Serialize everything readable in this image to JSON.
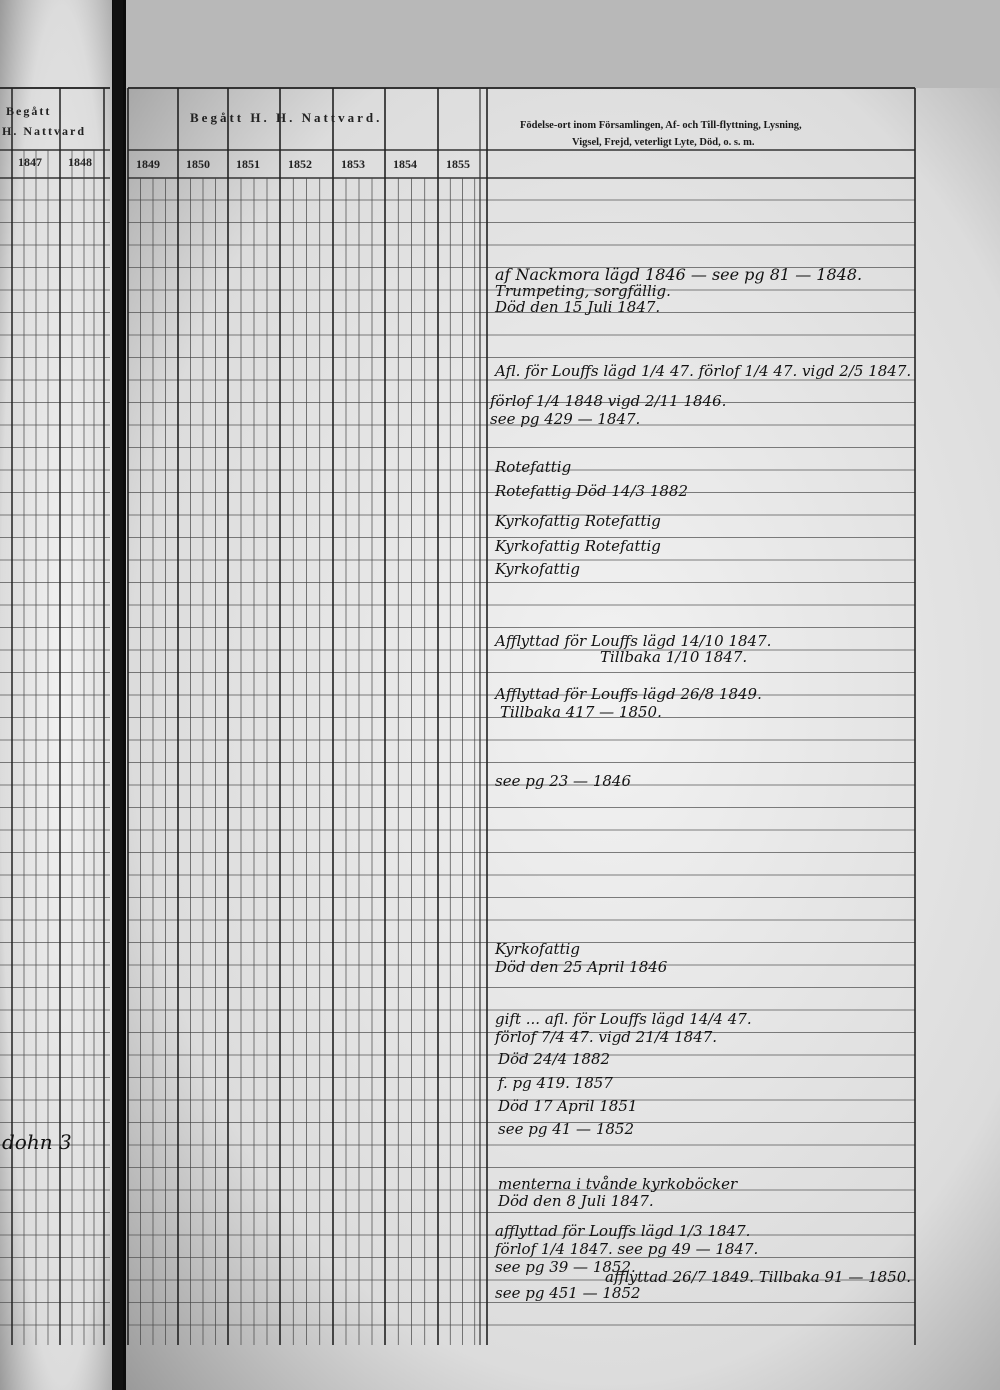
{
  "left_page": {
    "header": [
      "Begått",
      "H. Nattvard"
    ],
    "years": [
      "1847",
      "1848"
    ],
    "marginal": "dohn 3"
  },
  "right_page": {
    "header": "Begått H. H. Nattvard.",
    "years": [
      "1849",
      "1850",
      "1851",
      "1852",
      "1853",
      "1854",
      "1855"
    ],
    "notes_header": [
      "Födelse-ort inom Församlingen, Af- och Till-flyttning, Lysning,",
      "Vigsel, Frejd, veterligt Lyte, Död, o. s. m."
    ],
    "notes": [
      "af Nackmora lägd 1846 — see pg 81 — 1848.",
      "Trumpeting, sorgfällig.",
      "Död den 15 Juli 1847.",
      "Afl. för Louffs lägd 1/4 47. förlof 1/4 47. vigd 2/5 1847.",
      "förlof 1/4 1848 vigd 2/11 1846.",
      "see pg 429 — 1847.",
      "Rotefattig",
      "Rotefattig   Död 14/3 1882",
      "Kyrkofattig   Rotefattig",
      "Kyrkofattig   Rotefattig",
      "Kyrkofattig",
      "Afflyttad för Louffs lägd 14/10 1847.",
      "Tillbaka 1/10 1847.",
      "Afflyttad för Louffs lägd 26/8 1849.",
      "Tillbaka 417 — 1850.",
      "see pg 23 — 1846",
      "Kyrkofattig",
      "Död den 25 April 1846",
      "gift ... afl. för Louffs lägd 14/4 47.",
      "förlof 7/4 47. vigd 21/4 1847.",
      "Död 24/4 1882",
      "f. pg 419. 1857",
      "Död 17 April 1851",
      "see pg 41 — 1852",
      "menterna i tvånde kyrkoböcker",
      "Död den 8 Juli 1847.",
      "afflyttad för Louffs lägd 1/3 1847.",
      "förlof 1/4 1847. see pg 49 — 1847.",
      "see pg 39 — 1852.",
      "afflyttad 26/7 1849. Tillbaka 91 — 1850.",
      "see pg 451 — 1852"
    ]
  }
}
